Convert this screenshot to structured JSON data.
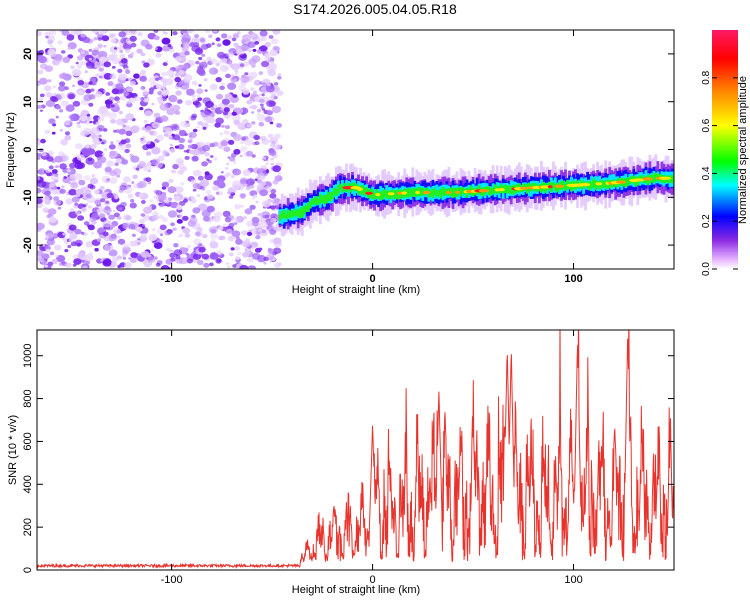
{
  "title": "S174.2026.005.04.05.R18",
  "chart_data": [
    {
      "type": "heatmap",
      "xlabel": "Height of straight line (km)",
      "ylabel": "Frequency (Hz)",
      "xlim": [
        -167,
        150
      ],
      "ylim": [
        -25,
        25
      ],
      "xticks": [
        -100,
        0,
        100
      ],
      "yticks": [
        -20,
        -10,
        0,
        10,
        20
      ],
      "xtick_labels": [
        "-100",
        "0",
        "100"
      ],
      "ytick_labels": [
        "-20",
        "-10",
        "0",
        "10",
        "20"
      ],
      "noise_region_x": [
        -167,
        -46
      ],
      "signal_track": [
        {
          "x": -46,
          "y": -14
        },
        {
          "x": -35,
          "y": -13
        },
        {
          "x": -30,
          "y": -11
        },
        {
          "x": -22,
          "y": -10
        },
        {
          "x": -16,
          "y": -8
        },
        {
          "x": -8,
          "y": -8
        },
        {
          "x": 0,
          "y": -9.5
        },
        {
          "x": 20,
          "y": -9
        },
        {
          "x": 40,
          "y": -9
        },
        {
          "x": 60,
          "y": -8.5
        },
        {
          "x": 80,
          "y": -8
        },
        {
          "x": 100,
          "y": -7.5
        },
        {
          "x": 120,
          "y": -7
        },
        {
          "x": 140,
          "y": -6
        },
        {
          "x": 150,
          "y": -6
        }
      ],
      "colorbar": {
        "label": "Normalized spectral amplitude",
        "range": [
          0,
          1
        ],
        "ticks": [
          0.0,
          0.2,
          0.4,
          0.6,
          0.8
        ],
        "tick_labels": [
          "0.0",
          "0.2",
          "0.4",
          "0.6",
          "0.8"
        ]
      }
    },
    {
      "type": "line",
      "xlabel": "Height of straight line (km)",
      "ylabel": "SNR (10 * v/v)",
      "xlim": [
        -167,
        150
      ],
      "ylim": [
        0,
        1120
      ],
      "xticks": [
        -100,
        0,
        100
      ],
      "yticks": [
        0,
        200,
        400,
        600,
        800,
        1000
      ],
      "xtick_labels": [
        "-100",
        "0",
        "100"
      ],
      "ytick_labels": [
        "0",
        "200",
        "400",
        "600",
        "800",
        "1000"
      ],
      "series_color": "#e8332c",
      "envelope": [
        {
          "x": -167,
          "y": 25
        },
        {
          "x": -36,
          "y": 25
        },
        {
          "x": -30,
          "y": 170
        },
        {
          "x": -20,
          "y": 240
        },
        {
          "x": -10,
          "y": 260
        },
        {
          "x": -4,
          "y": 300
        },
        {
          "x": 0,
          "y": 450
        },
        {
          "x": 10,
          "y": 420
        },
        {
          "x": 20,
          "y": 520
        },
        {
          "x": 40,
          "y": 560
        },
        {
          "x": 60,
          "y": 580
        },
        {
          "x": 80,
          "y": 540
        },
        {
          "x": 100,
          "y": 560
        },
        {
          "x": 120,
          "y": 580
        },
        {
          "x": 140,
          "y": 530
        },
        {
          "x": 150,
          "y": 560
        }
      ],
      "peaks": [
        {
          "x": 0,
          "y": 680
        },
        {
          "x": 33,
          "y": 840
        },
        {
          "x": 67,
          "y": 1040
        },
        {
          "x": 69,
          "y": 1035
        },
        {
          "x": 102,
          "y": 1080
        },
        {
          "x": 127,
          "y": 1120
        }
      ]
    }
  ]
}
